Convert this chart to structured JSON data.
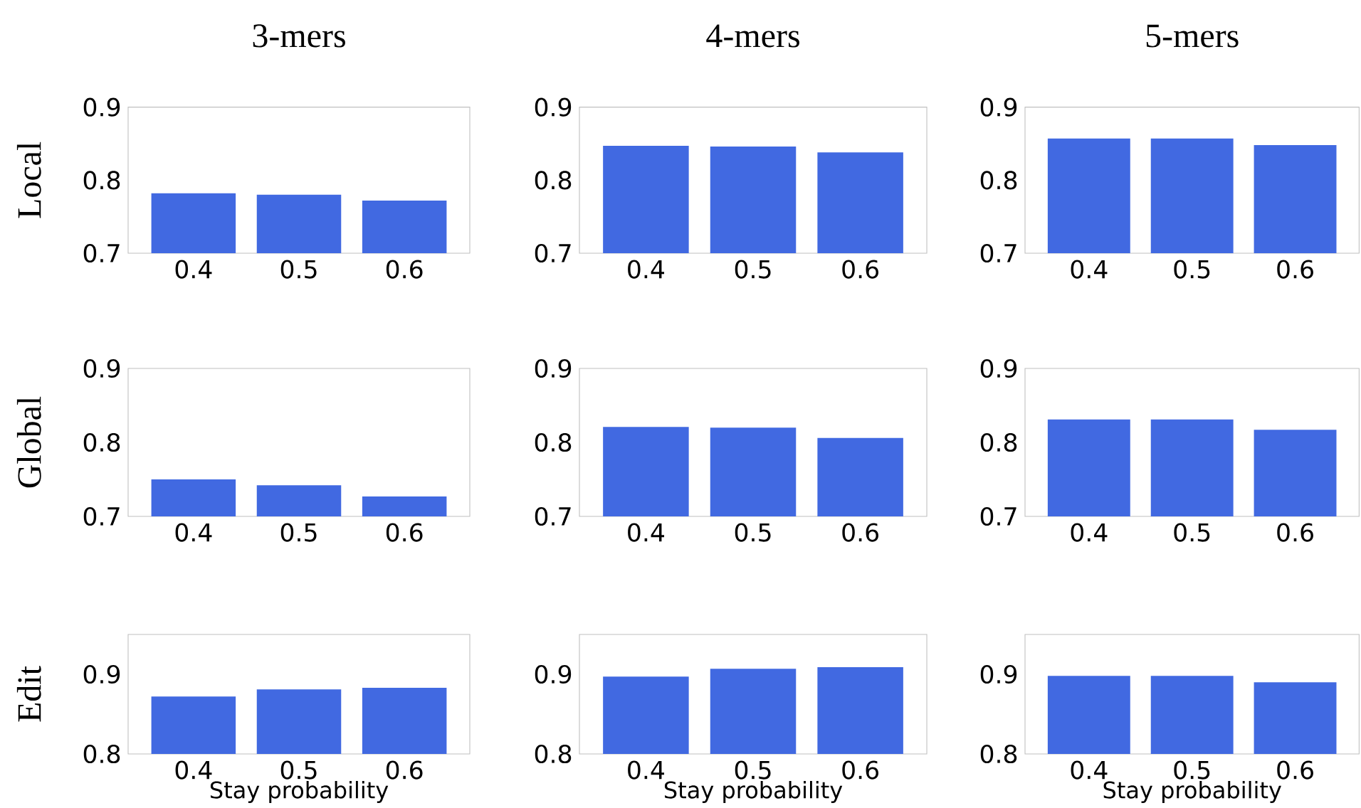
{
  "chart_data": [
    {
      "type": "bar",
      "title": "3-mers",
      "ylabel": "Local",
      "categories": [
        "0.4",
        "0.5",
        "0.6"
      ],
      "values": [
        0.782,
        0.78,
        0.772
      ],
      "color": "#4169e1",
      "ylim": [
        0.7,
        0.9
      ],
      "yticks": [
        0.7,
        0.8,
        0.9
      ]
    },
    {
      "type": "bar",
      "title": "4-mers",
      "categories": [
        "0.4",
        "0.5",
        "0.6"
      ],
      "values": [
        0.847,
        0.846,
        0.838
      ],
      "color": "#4169e1",
      "ylim": [
        0.7,
        0.9
      ],
      "yticks": [
        0.7,
        0.8,
        0.9
      ]
    },
    {
      "type": "bar",
      "title": "5-mers",
      "categories": [
        "0.4",
        "0.5",
        "0.6"
      ],
      "values": [
        0.857,
        0.857,
        0.848
      ],
      "color": "#4169e1",
      "ylim": [
        0.7,
        0.9
      ],
      "yticks": [
        0.7,
        0.8,
        0.9
      ]
    },
    {
      "type": "bar",
      "ylabel": "Global",
      "categories": [
        "0.4",
        "0.5",
        "0.6"
      ],
      "values": [
        0.75,
        0.742,
        0.727
      ],
      "color": "#4169e1",
      "ylim": [
        0.7,
        0.9
      ],
      "yticks": [
        0.7,
        0.8,
        0.9
      ]
    },
    {
      "type": "bar",
      "categories": [
        "0.4",
        "0.5",
        "0.6"
      ],
      "values": [
        0.821,
        0.82,
        0.806
      ],
      "color": "#4169e1",
      "ylim": [
        0.7,
        0.9
      ],
      "yticks": [
        0.7,
        0.8,
        0.9
      ]
    },
    {
      "type": "bar",
      "categories": [
        "0.4",
        "0.5",
        "0.6"
      ],
      "values": [
        0.831,
        0.831,
        0.817
      ],
      "color": "#4169e1",
      "ylim": [
        0.7,
        0.9
      ],
      "yticks": [
        0.7,
        0.8,
        0.9
      ]
    },
    {
      "type": "bar",
      "ylabel": "Edit",
      "xlabel": "Stay probability",
      "categories": [
        "0.4",
        "0.5",
        "0.6"
      ],
      "values": [
        0.872,
        0.881,
        0.883
      ],
      "color": "#4169e1",
      "ylim": [
        0.8,
        0.95
      ],
      "yticks": [
        0.8,
        0.9
      ]
    },
    {
      "type": "bar",
      "xlabel": "Stay probability",
      "categories": [
        "0.4",
        "0.5",
        "0.6"
      ],
      "values": [
        0.897,
        0.907,
        0.909
      ],
      "color": "#4169e1",
      "ylim": [
        0.8,
        0.95
      ],
      "yticks": [
        0.8,
        0.9
      ]
    },
    {
      "type": "bar",
      "xlabel": "Stay probability",
      "categories": [
        "0.4",
        "0.5",
        "0.6"
      ],
      "values": [
        0.898,
        0.898,
        0.89
      ],
      "color": "#4169e1",
      "ylim": [
        0.8,
        0.95
      ],
      "yticks": [
        0.8,
        0.9
      ]
    }
  ]
}
